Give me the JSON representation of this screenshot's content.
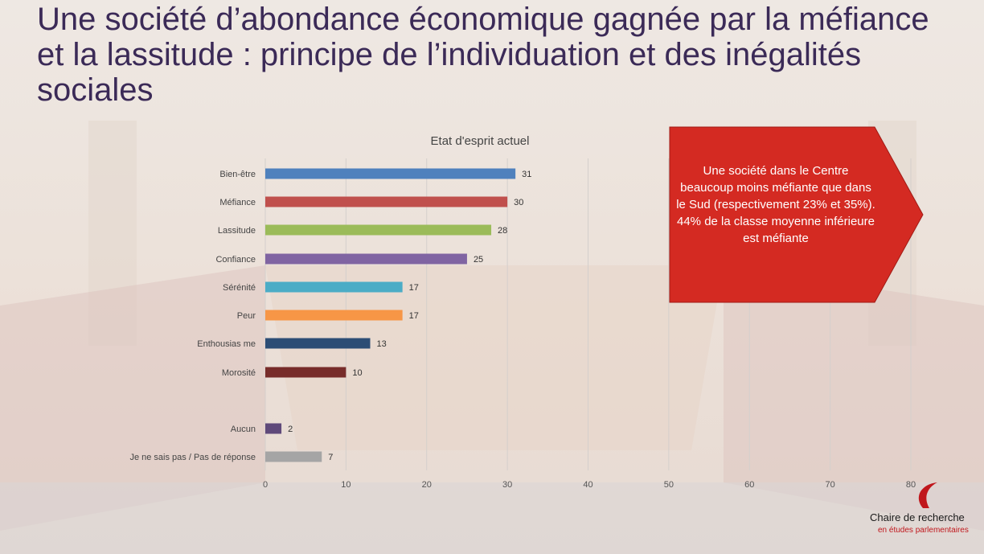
{
  "slide": {
    "title": "Une société d’abondance économique gagnée par la méfiance et la lassitude : principe de l’individuation et des inégalités sociales"
  },
  "callout": {
    "text": "Une société dans le Centre beaucoup moins méfiante que dans le Sud (respectivement 23% et 35%). 44% de la classe moyenne inférieure est méfiante",
    "color": "#d42a22"
  },
  "logo": {
    "line1": "Chaire de recherche",
    "line2": "en études parlementaires",
    "accent": "#c0171c"
  },
  "chart_data": {
    "type": "bar",
    "orientation": "horizontal",
    "title": "Etat d'esprit actuel",
    "xlabel": "",
    "ylabel": "",
    "xlim": [
      0,
      80
    ],
    "xticks": [
      0,
      10,
      20,
      30,
      40,
      50,
      60,
      70,
      80
    ],
    "grid": true,
    "legend": "none",
    "categories": [
      "Bien-être",
      "Méfiance",
      "Lassitude",
      "Confiance",
      "Sérénité",
      "Peur",
      "Enthousias me",
      "Morosité",
      "Aucun",
      "Je ne sais pas / Pas de réponse"
    ],
    "values": [
      31,
      30,
      28,
      25,
      17,
      17,
      13,
      10,
      2,
      7
    ],
    "colors": [
      "#4f81bd",
      "#c0504d",
      "#9bbb59",
      "#8064a2",
      "#4bacc6",
      "#f79646",
      "#2c4d75",
      "#772c2a",
      "#5f497a",
      "#a5a5a5"
    ]
  }
}
